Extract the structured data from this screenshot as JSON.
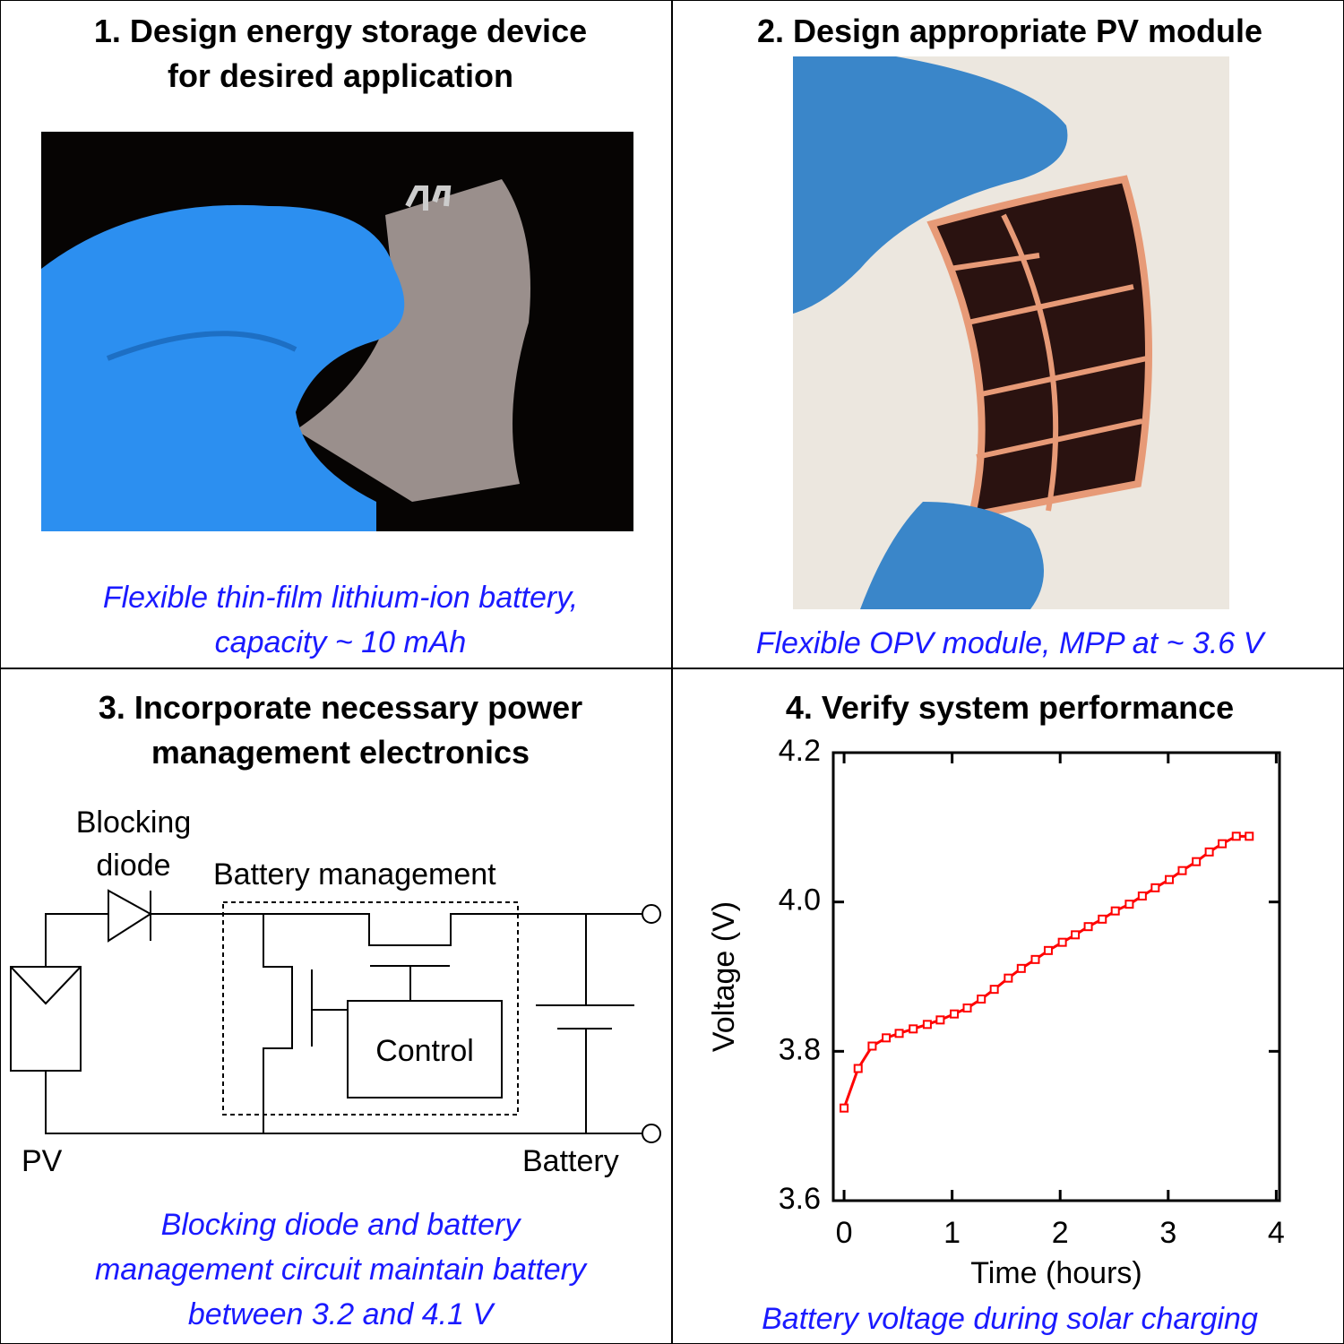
{
  "panels": [
    {
      "title_lines": [
        "1. Design energy storage device",
        "for desired application"
      ],
      "caption_lines": [
        "Flexible thin-film lithium-ion battery,",
        "capacity ~ 10 mAh"
      ]
    },
    {
      "title_lines": [
        "2. Design appropriate PV module"
      ],
      "caption_lines": [
        "Flexible OPV module, MPP at ~ 3.6 V"
      ]
    },
    {
      "title_lines": [
        "3. Incorporate necessary power",
        "management electronics"
      ],
      "caption_lines": [
        "Blocking diode and battery",
        "management circuit maintain battery",
        "between 3.2 and 4.1 V"
      ]
    },
    {
      "title_lines": [
        "4. Verify system performance"
      ],
      "caption_lines": [
        "Battery voltage during solar charging"
      ]
    }
  ],
  "circuit": {
    "diode_label_lines": [
      "Blocking",
      "diode"
    ],
    "management_label": "Battery management",
    "control_label": "Control",
    "pv_label": "PV",
    "battery_label": "Battery"
  },
  "chart_data": {
    "type": "line",
    "x_label": "Time (hours)",
    "y_label": "Voltage (V)",
    "color": "#ff0000",
    "x": [
      0,
      0.13,
      0.26,
      0.39,
      0.51,
      0.64,
      0.77,
      0.89,
      1.02,
      1.14,
      1.27,
      1.39,
      1.52,
      1.64,
      1.77,
      1.89,
      2.02,
      2.14,
      2.26,
      2.39,
      2.51,
      2.64,
      2.76,
      2.88,
      3.01,
      3.13,
      3.26,
      3.38,
      3.5,
      3.63,
      3.75
    ],
    "values": [
      3.724,
      3.777,
      3.807,
      3.818,
      3.824,
      3.83,
      3.836,
      3.842,
      3.85,
      3.858,
      3.87,
      3.883,
      3.898,
      3.911,
      3.923,
      3.935,
      3.946,
      3.956,
      3.967,
      3.977,
      3.988,
      3.997,
      4.008,
      4.019,
      4.03,
      4.042,
      4.054,
      4.067,
      4.078,
      4.088,
      4.088
    ],
    "xlim": [
      -0.1,
      4.03
    ],
    "ylim": [
      3.6,
      4.2
    ],
    "xticks": [
      0,
      1,
      2,
      3,
      4
    ],
    "yticks": [
      3.6,
      3.8,
      {
        "value": 4.0,
        "label": "4.0"
      },
      4.2
    ]
  }
}
